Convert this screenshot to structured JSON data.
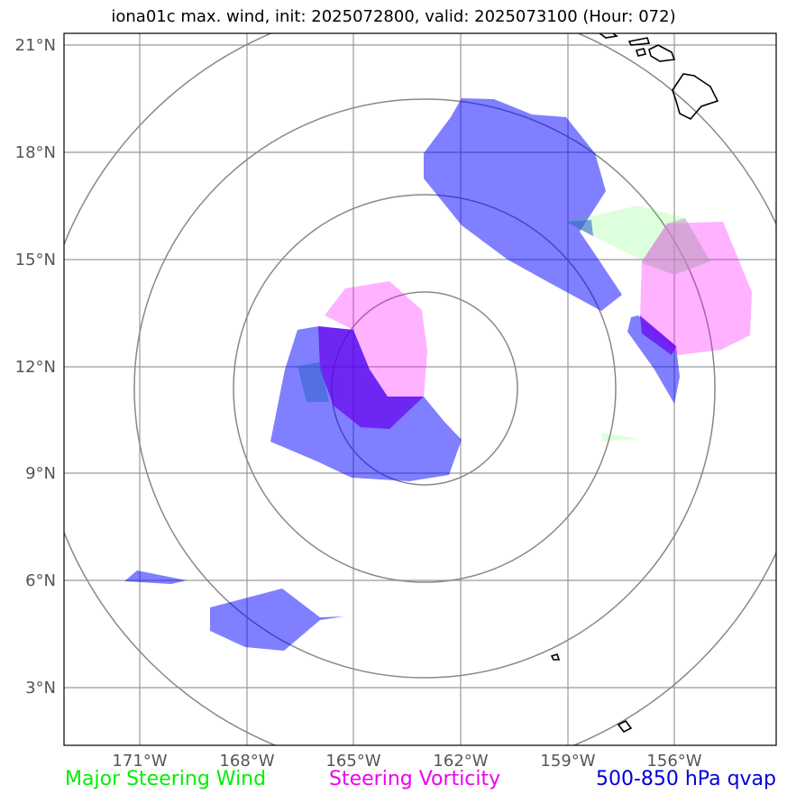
{
  "title": "iona01c max. wind, init: 2025072800, valid: 2025073100 (Hour: 072)",
  "map": {
    "lat_ticks": [
      "3°N",
      "6°N",
      "9°N",
      "12°N",
      "15°N",
      "18°N",
      "21°N"
    ],
    "lon_ticks": [
      "171°W",
      "168°W",
      "165°W",
      "162°W",
      "159°W",
      "156°W"
    ],
    "storm_center": {
      "lat": 10.8,
      "lon": 163.0
    }
  },
  "legend": {
    "wind": "Major Steering Wind",
    "vorticity": "Steering Vorticity",
    "qvap": "500-850 hPa qvap"
  },
  "colors": {
    "wind": "#00ff00",
    "vorticity": "#ff00ff",
    "qvap": "#0000ff"
  }
}
